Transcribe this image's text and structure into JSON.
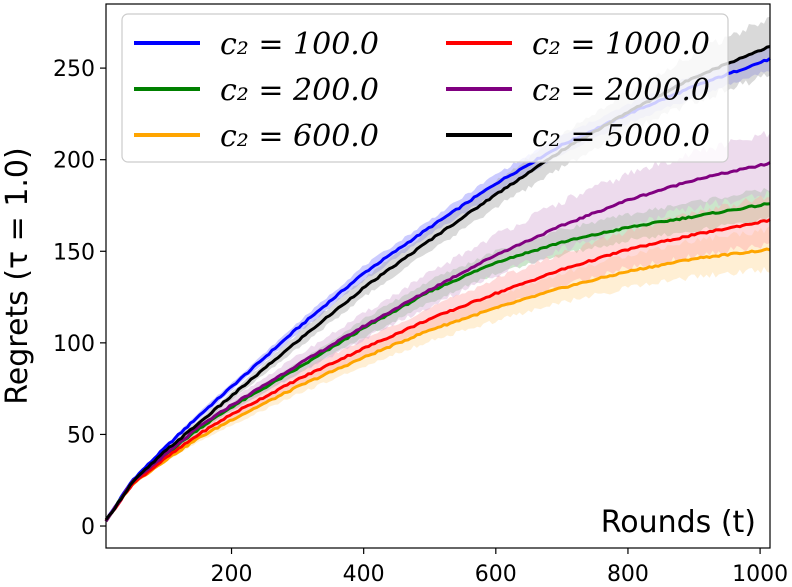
{
  "chart_data": {
    "type": "line",
    "xlabel": "Rounds (t)",
    "ylabel": "Regrets (τ = 1.0)",
    "xlim": [
      10,
      1015
    ],
    "ylim": [
      -12,
      285
    ],
    "xticks": [
      200,
      400,
      600,
      800,
      1000
    ],
    "yticks": [
      0,
      50,
      100,
      150,
      200,
      250
    ],
    "xtick_labels": [
      "200",
      "400",
      "600",
      "800",
      "1000"
    ],
    "ytick_labels": [
      "0",
      "50",
      "100",
      "150",
      "200",
      "250"
    ],
    "grid": false,
    "legend_position": "upper-left",
    "legend_columns": 2,
    "x": [
      10,
      50,
      100,
      150,
      200,
      300,
      400,
      500,
      600,
      700,
      800,
      900,
      1015
    ],
    "series": [
      {
        "name": "c₂ = 100.0",
        "color": "#0000ff",
        "band_color": "#8c8cff",
        "values": [
          3,
          25,
          43,
          60,
          76,
          108,
          138,
          163,
          187,
          208,
          225,
          240,
          255
        ],
        "band": [
          1,
          1,
          1,
          2,
          2,
          3,
          4,
          4,
          5,
          5,
          5,
          6,
          6
        ]
      },
      {
        "name": "c₂ = 200.0",
        "color": "#008000",
        "band_color": "#8cc88c",
        "values": [
          3,
          24,
          39,
          53,
          65,
          86,
          108,
          128,
          144,
          155,
          163,
          169,
          176
        ],
        "band": [
          1,
          1,
          1,
          2,
          2,
          3,
          5,
          6,
          6,
          7,
          7,
          8,
          8
        ]
      },
      {
        "name": "c₂ = 600.0",
        "color": "#ffa500",
        "band_color": "#ffdca0",
        "values": [
          3,
          23,
          36,
          48,
          58,
          76,
          92,
          107,
          119,
          130,
          139,
          146,
          151
        ],
        "band": [
          1,
          1,
          1,
          2,
          3,
          4,
          5,
          6,
          7,
          8,
          9,
          10,
          11
        ]
      },
      {
        "name": "c₂ = 1000.0",
        "color": "#ff0000",
        "band_color": "#ffaaaa",
        "values": [
          3,
          23,
          37,
          50,
          61,
          80,
          97,
          113,
          127,
          140,
          151,
          159,
          167
        ],
        "band": [
          1,
          1,
          1,
          2,
          3,
          4,
          5,
          6,
          8,
          9,
          10,
          12,
          13
        ]
      },
      {
        "name": "c₂ = 2000.0",
        "color": "#800080",
        "band_color": "#d8b0d8",
        "values": [
          3,
          24,
          39,
          54,
          66,
          88,
          109,
          129,
          148,
          164,
          178,
          189,
          198
        ],
        "band": [
          1,
          1,
          1,
          2,
          3,
          5,
          7,
          9,
          11,
          13,
          14,
          15,
          16
        ]
      },
      {
        "name": "c₂ = 5000.0",
        "color": "#000000",
        "band_color": "#aaaaaa",
        "values": [
          3,
          24,
          41,
          56,
          71,
          101,
          130,
          156,
          181,
          205,
          226,
          245,
          262
        ],
        "band": [
          1,
          1,
          1,
          2,
          2,
          4,
          5,
          6,
          7,
          9,
          11,
          13,
          16
        ]
      }
    ]
  }
}
